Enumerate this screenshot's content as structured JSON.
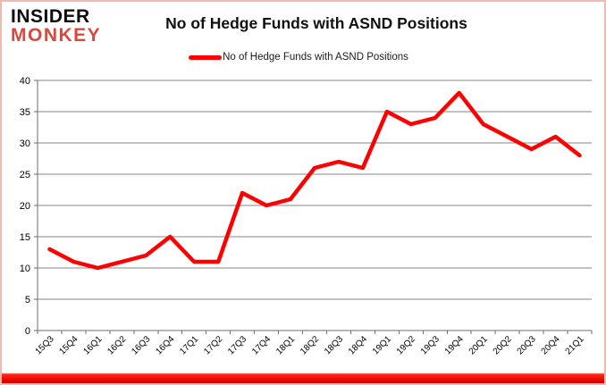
{
  "logo": {
    "line1": "INSIDER",
    "line2": "MONKEY",
    "line2_color": "#d9483b"
  },
  "title": "No of Hedge Funds with ASND Positions",
  "legend": {
    "label": "No of Hedge Funds with ASND Positions",
    "swatch_color": "#fe0000"
  },
  "colors": {
    "line": "#fe0000",
    "grid": "#848484",
    "axis": "#6e6e6e",
    "frame_border": "#f0b9b2",
    "bottom_bar": "#e80000",
    "background": "#ffffff"
  },
  "chart_data": {
    "type": "line",
    "title": "No of Hedge Funds with ASND Positions",
    "xlabel": "",
    "ylabel": "",
    "categories": [
      "15Q3",
      "15Q4",
      "16Q1",
      "16Q2",
      "16Q3",
      "16Q4",
      "17Q1",
      "17Q2",
      "17Q3",
      "17Q4",
      "18Q1",
      "18Q2",
      "18Q3",
      "18Q4",
      "19Q1",
      "19Q2",
      "19Q3",
      "19Q4",
      "20Q1",
      "20Q2",
      "20Q3",
      "20Q4",
      "21Q1"
    ],
    "series": [
      {
        "name": "No of Hedge Funds with ASND Positions",
        "color": "#fe0000",
        "values": [
          13,
          11,
          10,
          11,
          12,
          15,
          11,
          11,
          22,
          20,
          21,
          26,
          27,
          26,
          35,
          33,
          34,
          38,
          33,
          31,
          29,
          31,
          28
        ]
      }
    ],
    "ylim": [
      0,
      40
    ],
    "ytick_step": 5,
    "yticks": [
      0,
      5,
      10,
      15,
      20,
      25,
      30,
      35,
      40
    ],
    "grid": true,
    "legend_position": "top-center",
    "x_label_rotation": -45
  }
}
